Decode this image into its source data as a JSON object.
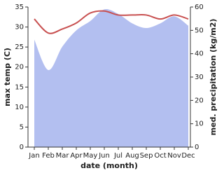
{
  "chart_data": {
    "type": "line-area",
    "x_label": "date (month)",
    "y_label": "max temp (C)",
    "y2_label": "med. precipitation (kg/m2)",
    "categories": [
      "Jan",
      "Feb",
      "Mar",
      "Apr",
      "May",
      "Jun",
      "Jul",
      "Aug",
      "Sep",
      "Oct",
      "Nov",
      "Dec"
    ],
    "series": [
      {
        "name": "max temp",
        "type": "line",
        "color": "#c85050",
        "values": [
          32,
          28.5,
          29.5,
          31,
          33.5,
          34,
          33,
          33,
          33,
          32,
          33,
          32
        ]
      },
      {
        "name": "med. precipitation",
        "type": "area",
        "axis": "y2",
        "color": "#b3bff0",
        "values": [
          46,
          33,
          43,
          50,
          54,
          59,
          57,
          53,
          51,
          53,
          56,
          52
        ]
      }
    ],
    "ylim": [
      0,
      35
    ],
    "yticks": [
      0,
      5,
      10,
      15,
      20,
      25,
      30,
      35
    ],
    "y2lim": [
      0,
      60
    ],
    "y2ticks": [
      0,
      10,
      20,
      30,
      40,
      50,
      60
    ]
  }
}
